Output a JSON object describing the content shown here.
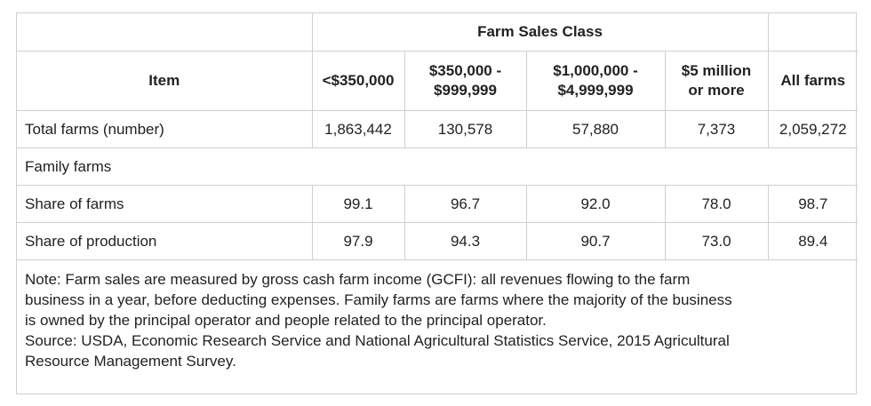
{
  "table": {
    "group_header": "Farm Sales Class",
    "columns": [
      "Item",
      "<$350,000",
      "$350,000 -\n$999,999",
      "$1,000,000 -\n$4,999,999",
      "$5 million\nor more",
      "All farms"
    ],
    "col_lines": [
      [
        "Item"
      ],
      [
        "<$350,000"
      ],
      [
        "$350,000 -",
        "$999,999"
      ],
      [
        "$1,000,000 -",
        "$4,999,999"
      ],
      [
        "$5 million",
        "or more"
      ],
      [
        "All farms"
      ]
    ],
    "rows": [
      {
        "label": "Total farms (number)",
        "values": [
          "1,863,442",
          "130,578",
          "57,880",
          "7,373",
          "2,059,272"
        ]
      },
      {
        "label": "Share of farms",
        "values": [
          "99.1",
          "96.7",
          "92.0",
          "78.0",
          "98.7"
        ]
      },
      {
        "label": "Share of production",
        "values": [
          "97.9",
          "94.3",
          "90.7",
          "73.0",
          "89.4"
        ]
      }
    ],
    "section_label": "Family farms",
    "note_lines": [
      "Note: Farm sales are measured by gross cash farm income (GCFI): all revenues flowing to the farm",
      "business in a year, before deducting expenses. Family farms are farms where the majority of the business",
      "is owned by the principal operator and people related to the principal operator.",
      "Source: USDA, Economic Research Service and National Agricultural Statistics Service, 2015 Agricultural",
      "Resource Management Survey."
    ]
  }
}
